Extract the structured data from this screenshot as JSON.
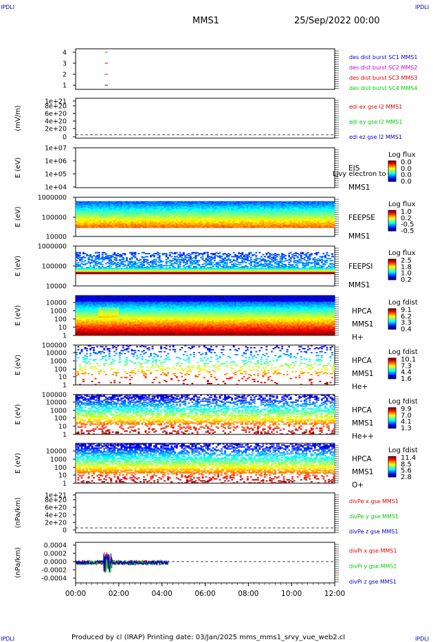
{
  "header": {
    "corner_left": "IPDLI",
    "corner_right": "IPDLI",
    "spacecraft": "MMS1",
    "date": "25/Sep/2022 00:00"
  },
  "footer": {
    "corner_left": "IPDLI",
    "corner_right": "IPDLI",
    "credit": "Produced by cl (IRAP)   Printing date: 03/Jan/2025   mms_mms1_srvy_vue_web2.cl"
  },
  "time_axis": {
    "ticks": [
      "00:00",
      "02:00",
      "04:00",
      "06:00",
      "08:00",
      "10:00",
      "12:00"
    ],
    "range_hours": [
      0,
      12
    ]
  },
  "chart_data": [
    {
      "type": "scatter",
      "id": "des-burst",
      "ylabel": "",
      "yticks": [
        "1",
        "2",
        "3",
        "4"
      ],
      "legend": [
        {
          "text": "des dist burst SC1 MMS1",
          "color": "#0000cc"
        },
        {
          "text": "des dist burst SC2 MMS2",
          "color": "#cc00cc"
        },
        {
          "text": "des dist burst SC3 MMS3",
          "color": "#dd0000"
        },
        {
          "text": "des dist burst SC4 MMS4",
          "color": "#00cc00"
        }
      ],
      "series": [
        {
          "name": "des dist burst SC1 MMS1",
          "y": 1,
          "x_hours": [
            1.35,
            1.5
          ]
        },
        {
          "name": "des dist burst SC2 MMS2",
          "y": 2,
          "x_hours": [
            1.35,
            1.5
          ]
        },
        {
          "name": "des dist burst SC3 MMS3",
          "y": 3,
          "x_hours": [
            1.35,
            1.5
          ]
        },
        {
          "name": "des dist burst SC4 MMS4",
          "y": 4,
          "x_hours": [
            1.35,
            1.5
          ]
        }
      ]
    },
    {
      "type": "line",
      "id": "edi-e",
      "ylabel": "(mV/m)",
      "yticks": [
        "0",
        "2e+20",
        "4e+20",
        "6e+20",
        "8e+20",
        "1e+21"
      ],
      "legend": [
        {
          "text": "edi ex gse l2 MMS1",
          "color": "#dd0000"
        },
        {
          "text": "edi ey gse l2 MMS1",
          "color": "#00cc00"
        },
        {
          "text": "edi ez gse l2 MMS1",
          "color": "#0000cc"
        }
      ],
      "zero_line": true
    },
    {
      "type": "heatmap",
      "id": "eis",
      "ylabel": "E (eV)",
      "yticks": [
        "1e+04",
        "1e+05",
        "1e+06",
        "1e+07"
      ],
      "labels": [
        "EIS",
        "MMS1"
      ],
      "overlay_text": "Ljvy electron to",
      "colorbar": {
        "title": "Log flux",
        "ticks": [
          "0.0",
          "0.0",
          "0.0",
          "0.0"
        ]
      }
    },
    {
      "type": "heatmap",
      "id": "feepse",
      "ylabel": "E (eV)",
      "yticks": [
        "10000",
        "100000",
        "1000000"
      ],
      "labels": [
        "FEEPSE",
        "MMS1"
      ],
      "colorbar": {
        "title": "Log flux",
        "ticks": [
          "1.0",
          "0.2",
          "-0.5",
          "-0.5"
        ]
      }
    },
    {
      "type": "heatmap",
      "id": "feepsi",
      "ylabel": "E (eV)",
      "yticks": [
        "10000",
        "100000",
        "1000000"
      ],
      "labels": [
        "FEEPSI",
        "MMS1"
      ],
      "colorbar": {
        "title": "Log flux",
        "ticks": [
          "2.5",
          "1.8",
          "1.0",
          "0.2"
        ]
      }
    },
    {
      "type": "heatmap",
      "id": "hpca-h",
      "ylabel": "E (eV)",
      "yticks": [
        "1",
        "10",
        "100",
        "1000",
        "10000"
      ],
      "labels": [
        "HPCA",
        "MMS1",
        "H+"
      ],
      "colorbar": {
        "title": "Log fdist",
        "ticks": [
          "9.1",
          "6.2",
          "3.3",
          "0.4"
        ]
      }
    },
    {
      "type": "heatmap",
      "id": "hpca-he",
      "ylabel": "E (eV)",
      "yticks": [
        "1",
        "10",
        "100",
        "1000",
        "10000",
        "100000"
      ],
      "labels": [
        "HPCA",
        "MMS1",
        "He+"
      ],
      "colorbar": {
        "title": "Log fdist",
        "ticks": [
          "10.1",
          "7.3",
          "4.4",
          "1.6"
        ]
      }
    },
    {
      "type": "heatmap",
      "id": "hpca-hepp",
      "ylabel": "E (eV)",
      "yticks": [
        "1",
        "10",
        "100",
        "1000",
        "10000",
        "100000"
      ],
      "labels": [
        "HPCA",
        "MMS1",
        "He++"
      ],
      "colorbar": {
        "title": "Log fdist",
        "ticks": [
          "9.9",
          "7.0",
          "4.1",
          "1.3"
        ]
      }
    },
    {
      "type": "heatmap",
      "id": "hpca-o",
      "ylabel": "E (eV)",
      "yticks": [
        "1",
        "10",
        "100",
        "1000",
        "10000"
      ],
      "labels": [
        "HPCA",
        "MMS1",
        "O+"
      ],
      "colorbar": {
        "title": "Log fdist",
        "ticks": [
          "11.4",
          "8.5",
          "5.6",
          "2.8"
        ]
      }
    },
    {
      "type": "line",
      "id": "divpe",
      "ylabel": "(nPa/km)",
      "yticks": [
        "0",
        "2e+20",
        "4e+20",
        "6e+20",
        "8e+20",
        "1e+21"
      ],
      "legend": [
        {
          "text": "divPe x gse MMS1",
          "color": "#dd0000"
        },
        {
          "text": "divPe y gse MMS1",
          "color": "#00cc00"
        },
        {
          "text": "divPe z gse MMS1",
          "color": "#0000cc"
        }
      ],
      "zero_line": true
    },
    {
      "type": "line",
      "id": "divpi",
      "ylabel": "(nPa/km)",
      "yticks": [
        "-0.0004",
        "-0.0002",
        "0.0000",
        "0.0002",
        "0.0004"
      ],
      "ylim": [
        -0.0005,
        0.0005
      ],
      "legend": [
        {
          "text": "divPi x gse MMS1",
          "color": "#dd0000"
        },
        {
          "text": "divPi y gse MMS1",
          "color": "#00cc00"
        },
        {
          "text": "divPi z gse MMS1",
          "color": "#0000cc"
        }
      ],
      "data_extent_hours": [
        0,
        4.3
      ],
      "zero_line": true
    }
  ]
}
